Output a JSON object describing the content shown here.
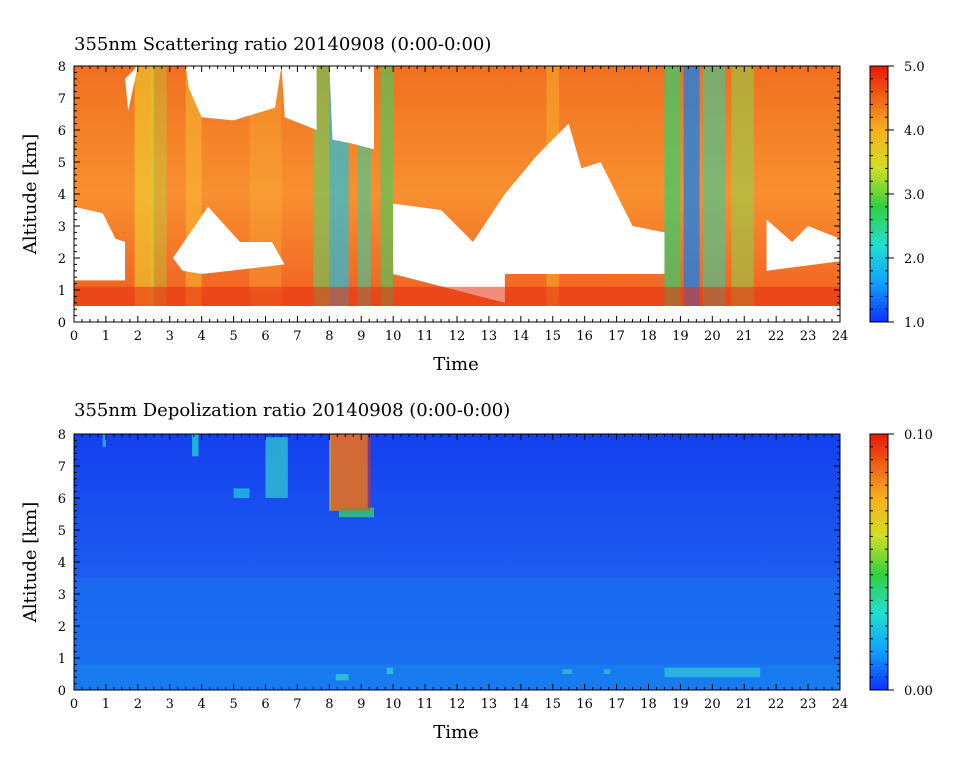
{
  "chart_data": [
    {
      "type": "heatmap",
      "title": "355nm Scattering ratio  20140908 (0:00-0:00)",
      "xlabel": "Time",
      "ylabel": "Altitude [km]",
      "xlim": [
        0,
        24
      ],
      "ylim": [
        0,
        8
      ],
      "x_ticks": [
        "0",
        "1",
        "2",
        "3",
        "4",
        "5",
        "6",
        "7",
        "8",
        "9",
        "10",
        "11",
        "12",
        "13",
        "14",
        "15",
        "16",
        "17",
        "18",
        "19",
        "20",
        "21",
        "22",
        "23",
        "24"
      ],
      "y_ticks": [
        "0",
        "1",
        "2",
        "3",
        "4",
        "5",
        "6",
        "7",
        "8"
      ],
      "colorbar": {
        "min": 1.0,
        "max": 5.0,
        "ticks": [
          "1.0",
          "2.0",
          "3.0",
          "4.0",
          "5.0"
        ]
      },
      "colors": {
        "low": "#1e3cff",
        "mid": "#f0e020",
        "high": "#e82010"
      }
    },
    {
      "type": "heatmap",
      "title": "355nm Depolization ratio  20140908 (0:00-0:00)",
      "xlabel": "Time",
      "ylabel": "Altitude [km]",
      "xlim": [
        0,
        24
      ],
      "ylim": [
        0,
        8
      ],
      "x_ticks": [
        "0",
        "1",
        "2",
        "3",
        "4",
        "5",
        "6",
        "7",
        "8",
        "9",
        "10",
        "11",
        "12",
        "13",
        "14",
        "15",
        "16",
        "17",
        "18",
        "19",
        "20",
        "21",
        "22",
        "23",
        "24"
      ],
      "y_ticks": [
        "0",
        "1",
        "2",
        "3",
        "4",
        "5",
        "6",
        "7",
        "8"
      ],
      "colorbar": {
        "min": 0.0,
        "max": 0.1,
        "ticks": [
          "0.00",
          "0.10"
        ]
      },
      "colors": {
        "low": "#1e3cff",
        "mid": "#20d0d0",
        "high": "#e82010"
      }
    }
  ]
}
